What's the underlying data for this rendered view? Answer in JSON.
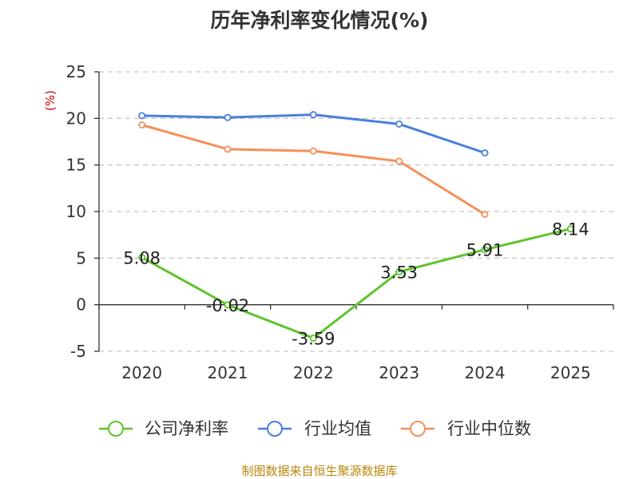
{
  "title": "历年净利率变化情况(%)",
  "source": "制图数据来自恒生聚源数据库",
  "colors": {
    "company": "#5ec42b",
    "industry_avg": "#4a7fdc",
    "industry_median": "#f6905a",
    "source_text": "#b8860b",
    "unit_text": "#cc0000"
  },
  "chart_data": {
    "type": "line",
    "title": "历年净利率变化情况(%)",
    "ylabel": "(%)",
    "xlabel": "",
    "categories": [
      "2020",
      "2021",
      "2022",
      "2023",
      "2024",
      "2025"
    ],
    "ylim": [
      -5,
      25
    ],
    "yticks": [
      -5,
      0,
      5,
      10,
      15,
      20,
      25
    ],
    "grid": true,
    "legend_position": "bottom",
    "series": [
      {
        "name": "公司净利率",
        "values": [
          5.08,
          -0.02,
          -3.59,
          3.53,
          5.91,
          8.14
        ],
        "labels": [
          "5.08",
          "-0.02",
          "-3.59",
          "3.53",
          "5.91",
          "8.14"
        ]
      },
      {
        "name": "行业均值",
        "values": [
          20.3,
          20.1,
          20.4,
          19.4,
          16.3,
          null
        ]
      },
      {
        "name": "行业中位数",
        "values": [
          19.3,
          16.7,
          16.5,
          15.4,
          9.7,
          null
        ]
      }
    ]
  }
}
